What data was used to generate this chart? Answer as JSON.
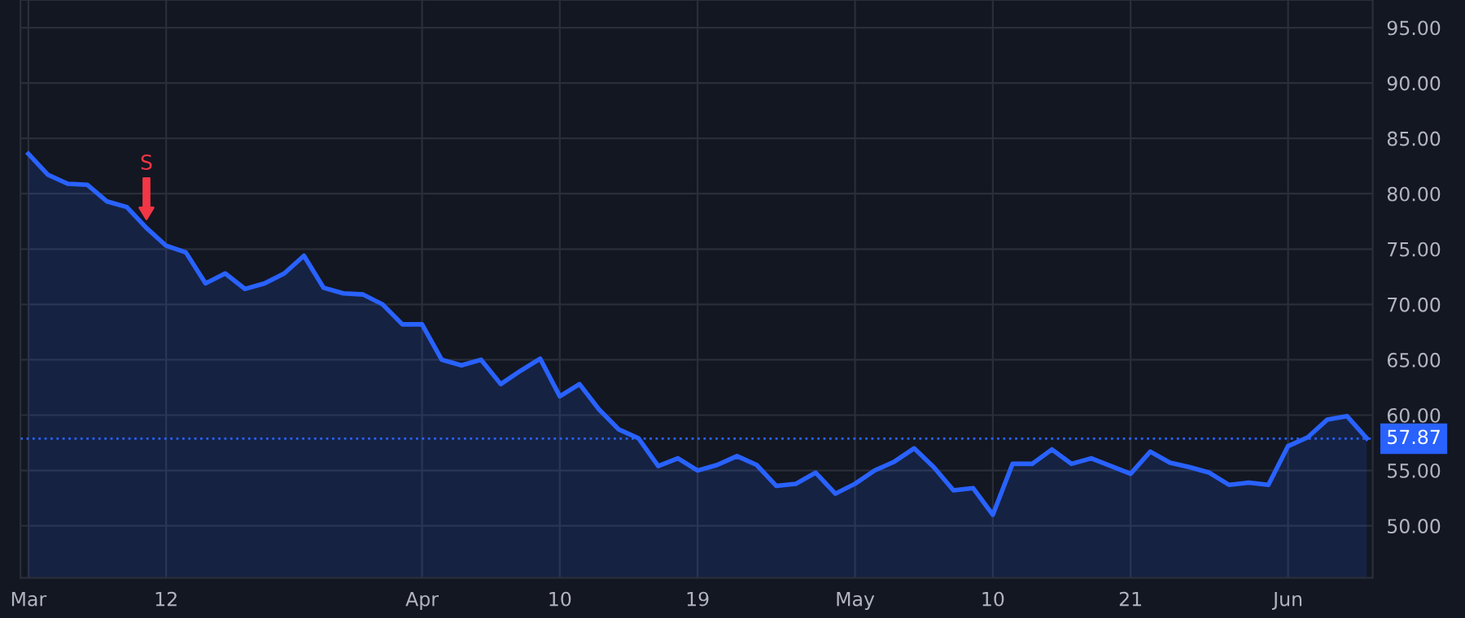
{
  "chart_data": {
    "type": "area",
    "categories": [
      "Mar",
      null,
      null,
      null,
      null,
      null,
      null,
      "12",
      null,
      null,
      null,
      null,
      null,
      null,
      null,
      null,
      null,
      null,
      null,
      null,
      "Apr",
      null,
      null,
      null,
      null,
      null,
      null,
      "10",
      null,
      null,
      null,
      null,
      null,
      null,
      "19",
      null,
      null,
      null,
      null,
      null,
      null,
      null,
      "May",
      null,
      null,
      null,
      null,
      null,
      null,
      "10",
      null,
      null,
      null,
      null,
      null,
      null,
      "21",
      null,
      null,
      null,
      null,
      null,
      null,
      null,
      "Jun",
      null,
      null,
      null,
      null
    ],
    "series": [
      {
        "color": "#2962ff",
        "values": [
          83.6,
          81.7,
          80.9,
          80.8,
          79.3,
          78.8,
          76.9,
          75.3,
          74.7,
          71.9,
          72.8,
          71.4,
          71.9,
          72.8,
          74.4,
          71.5,
          71.0,
          70.9,
          70.0,
          68.2,
          68.2,
          65.0,
          64.5,
          65.0,
          62.8,
          64.0,
          65.1,
          61.7,
          62.8,
          60.5,
          58.7,
          57.9,
          55.4,
          56.1,
          55.0,
          55.5,
          56.3,
          55.5,
          53.6,
          53.8,
          54.8,
          52.9,
          53.8,
          55.0,
          55.8,
          57.0,
          55.3,
          53.2,
          53.4,
          51.0,
          55.6,
          55.6,
          56.9,
          55.6,
          56.1,
          55.4,
          54.7,
          56.7,
          55.7,
          55.3,
          54.8,
          53.7,
          53.9,
          53.7,
          57.2,
          58.0,
          59.6,
          59.9,
          57.9
        ]
      }
    ],
    "ylim": [
      45.3,
      97.5
    ],
    "yticks": [
      {
        "value": 50,
        "label": "50.00"
      },
      {
        "value": 55,
        "label": "55.00"
      },
      {
        "value": 60,
        "label": "60.00"
      },
      {
        "value": 65,
        "label": "65.00"
      },
      {
        "value": 70,
        "label": "70.00"
      },
      {
        "value": 75,
        "label": "75.00"
      },
      {
        "value": 80,
        "label": "80.00"
      },
      {
        "value": 85,
        "label": "85.00"
      },
      {
        "value": 90,
        "label": "90.00"
      },
      {
        "value": 95,
        "label": "95.00"
      }
    ],
    "ref_lines": [
      {
        "axis": "y",
        "value": 57.87,
        "label": "57.87",
        "color": "#2962ff",
        "line_style": "dotted"
      }
    ],
    "annotations": [
      {
        "text": "S",
        "y": 76.9
      }
    ],
    "grid": true,
    "line_style": "solid",
    "marker": "none"
  }
}
